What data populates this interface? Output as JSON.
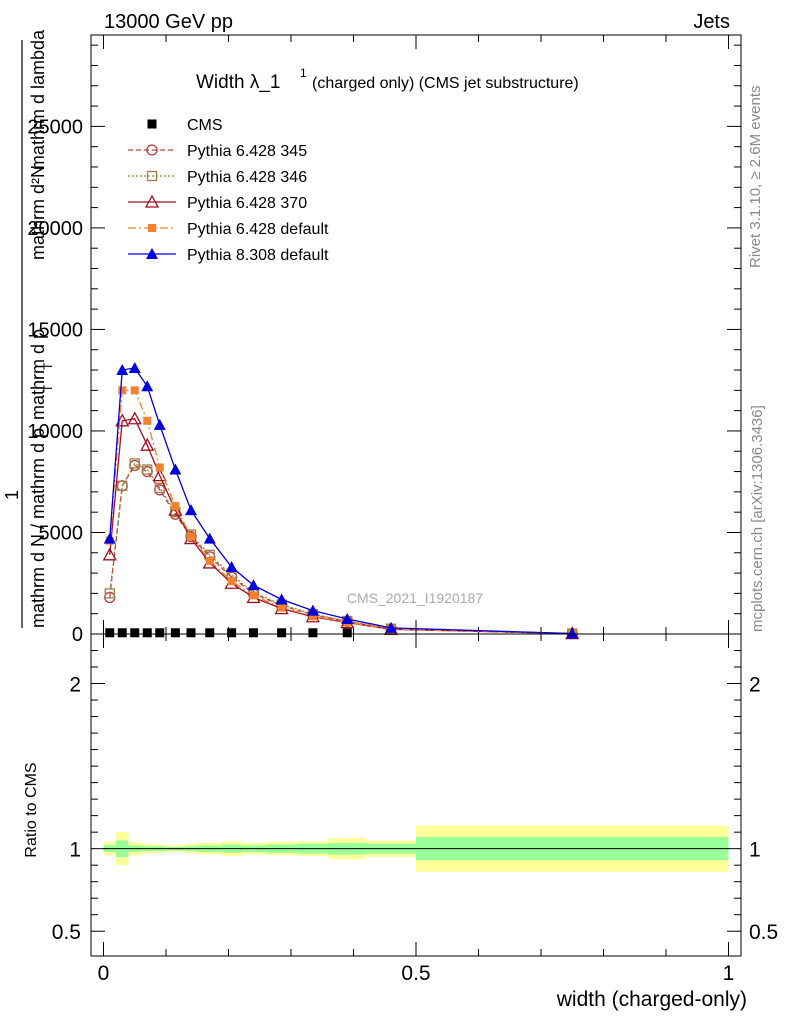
{
  "header": {
    "left": "13000 GeV pp",
    "right": "Jets"
  },
  "side_labels": {
    "rivet": "Rivet 3.1.10, ≥ 2.6M events",
    "mcplots": "mcplots.cern.ch [arXiv:1306.3436]"
  },
  "title": {
    "main": "Width λ_1",
    "superscript": "1",
    "detail": "(charged only) (CMS jet substructure)"
  },
  "watermark": "CMS_2021_I1920187",
  "ylabel_main": {
    "numerator": "mathrm d²N",
    "line1": "mathrm d p",
    "sub": "T",
    "line1b": "mathrm d lambda",
    "fraction_one": "1",
    "denominator": "mathrm d N / mathrm d p",
    "denominator_sub": "T"
  },
  "ylabel_ratio": "Ratio to CMS",
  "xlabel": "width (charged-only)",
  "colors": {
    "cms": "#000000",
    "p345": "#b94040",
    "p346": "#a08040",
    "p370": "#a01020",
    "pdefault": "#f48030",
    "p8": "#0000dd",
    "band_inner": "#99ff99",
    "band_outer": "#ffff99"
  },
  "chart_data": [
    {
      "type": "line",
      "panel": "main",
      "x_range": [
        -0.02,
        1.02
      ],
      "ylim": [
        0,
        29500
      ],
      "yticks": [
        {
          "v": 0,
          "label": "0"
        },
        {
          "v": 5000,
          "label": "5000"
        },
        {
          "v": 10000,
          "label": "10000"
        },
        {
          "v": 15000,
          "label": "15000"
        },
        {
          "v": 20000,
          "label": "20000"
        },
        {
          "v": 25000,
          "label": "25000"
        }
      ],
      "legend_position": "top-left",
      "series": [
        {
          "name": "CMS",
          "key": "cms",
          "marker": "square",
          "x": [
            0.01,
            0.03,
            0.05,
            0.07,
            0.09,
            0.115,
            0.14,
            0.17,
            0.205,
            0.24,
            0.285,
            0.335,
            0.39
          ],
          "values": [
            60,
            60,
            60,
            60,
            60,
            60,
            60,
            60,
            60,
            60,
            60,
            60,
            60
          ]
        },
        {
          "name": "Pythia 6.428 345",
          "key": "p345",
          "marker": "circle-open",
          "dash": "5,3",
          "x": [
            0.01,
            0.03,
            0.05,
            0.07,
            0.09,
            0.115,
            0.14,
            0.17,
            0.205,
            0.24,
            0.285,
            0.335,
            0.39,
            0.46,
            0.75
          ],
          "values": [
            1800,
            7300,
            8300,
            8000,
            7100,
            5900,
            4800,
            3800,
            2800,
            2000,
            1400,
            950,
            620,
            250,
            20
          ]
        },
        {
          "name": "Pythia 6.428 346",
          "key": "p346",
          "marker": "square-open",
          "dash": "2,2",
          "x": [
            0.01,
            0.03,
            0.05,
            0.07,
            0.09,
            0.115,
            0.14,
            0.17,
            0.205,
            0.24,
            0.285,
            0.335,
            0.39,
            0.46,
            0.75
          ],
          "values": [
            2000,
            7300,
            8400,
            8100,
            7200,
            6000,
            4900,
            3900,
            2900,
            2050,
            1450,
            980,
            640,
            260,
            20
          ]
        },
        {
          "name": "Pythia 6.428 370",
          "key": "p370",
          "marker": "triangle-open",
          "dash": "",
          "x": [
            0.01,
            0.03,
            0.05,
            0.07,
            0.09,
            0.115,
            0.14,
            0.17,
            0.205,
            0.24,
            0.285,
            0.335,
            0.39,
            0.46,
            0.75
          ],
          "values": [
            3900,
            10500,
            10600,
            9300,
            7800,
            6100,
            4700,
            3500,
            2500,
            1800,
            1250,
            850,
            560,
            230,
            20
          ]
        },
        {
          "name": "Pythia 6.428 default",
          "key": "pdefault",
          "marker": "square-filled",
          "dash": "8,3,2,3",
          "x": [
            0.01,
            0.03,
            0.05,
            0.07,
            0.09,
            0.115,
            0.14,
            0.17,
            0.205,
            0.24,
            0.285,
            0.335,
            0.39,
            0.46,
            0.75
          ],
          "values": [
            4600,
            12000,
            12000,
            10500,
            8200,
            6300,
            4800,
            3600,
            2600,
            1900,
            1300,
            880,
            580,
            240,
            20
          ]
        },
        {
          "name": "Pythia 8.308 default",
          "key": "p8",
          "marker": "triangle-filled",
          "dash": "",
          "x": [
            0.01,
            0.03,
            0.05,
            0.07,
            0.09,
            0.115,
            0.14,
            0.17,
            0.205,
            0.24,
            0.285,
            0.335,
            0.39,
            0.46,
            0.75
          ],
          "values": [
            4700,
            13000,
            13100,
            12200,
            10300,
            8100,
            6100,
            4700,
            3300,
            2400,
            1700,
            1150,
            740,
            300,
            25
          ]
        }
      ]
    },
    {
      "type": "area",
      "panel": "ratio",
      "ylabel": "Ratio to CMS",
      "xlabel": "width (charged-only)",
      "xlim": [
        -0.02,
        1.02
      ],
      "ylim": [
        0.35,
        2.3
      ],
      "yticks": [
        {
          "v": 0.5,
          "label": "0.5"
        },
        {
          "v": 1,
          "label": "1"
        },
        {
          "v": 2,
          "label": "2"
        }
      ],
      "xticks": [
        {
          "v": 0,
          "label": "0"
        },
        {
          "v": 0.5,
          "label": "0.5"
        },
        {
          "v": 1,
          "label": "1"
        }
      ],
      "bins": [
        {
          "lo": 0.0,
          "hi": 0.02,
          "inner": [
            0.98,
            1.02
          ],
          "outer": [
            0.96,
            1.04
          ]
        },
        {
          "lo": 0.02,
          "hi": 0.04,
          "inner": [
            0.95,
            1.05
          ],
          "outer": [
            0.9,
            1.1
          ]
        },
        {
          "lo": 0.04,
          "hi": 0.06,
          "inner": [
            0.98,
            1.02
          ],
          "outer": [
            0.96,
            1.04
          ]
        },
        {
          "lo": 0.06,
          "hi": 0.08,
          "inner": [
            0.985,
            1.015
          ],
          "outer": [
            0.97,
            1.03
          ]
        },
        {
          "lo": 0.08,
          "hi": 0.1,
          "inner": [
            0.985,
            1.015
          ],
          "outer": [
            0.975,
            1.025
          ]
        },
        {
          "lo": 0.1,
          "hi": 0.13,
          "inner": [
            0.99,
            1.01
          ],
          "outer": [
            0.98,
            1.02
          ]
        },
        {
          "lo": 0.13,
          "hi": 0.15,
          "inner": [
            0.985,
            1.015
          ],
          "outer": [
            0.97,
            1.03
          ]
        },
        {
          "lo": 0.15,
          "hi": 0.19,
          "inner": [
            0.98,
            1.02
          ],
          "outer": [
            0.965,
            1.035
          ]
        },
        {
          "lo": 0.19,
          "hi": 0.22,
          "inner": [
            0.975,
            1.025
          ],
          "outer": [
            0.955,
            1.045
          ]
        },
        {
          "lo": 0.22,
          "hi": 0.26,
          "inner": [
            0.98,
            1.02
          ],
          "outer": [
            0.965,
            1.035
          ]
        },
        {
          "lo": 0.26,
          "hi": 0.31,
          "inner": [
            0.975,
            1.025
          ],
          "outer": [
            0.96,
            1.04
          ]
        },
        {
          "lo": 0.31,
          "hi": 0.36,
          "inner": [
            0.97,
            1.03
          ],
          "outer": [
            0.955,
            1.045
          ]
        },
        {
          "lo": 0.36,
          "hi": 0.42,
          "inner": [
            0.965,
            1.035
          ],
          "outer": [
            0.935,
            1.065
          ]
        },
        {
          "lo": 0.42,
          "hi": 0.5,
          "inner": [
            0.97,
            1.03
          ],
          "outer": [
            0.95,
            1.05
          ]
        },
        {
          "lo": 0.5,
          "hi": 1.0,
          "inner": [
            0.93,
            1.07
          ],
          "outer": [
            0.86,
            1.14
          ]
        }
      ]
    }
  ]
}
